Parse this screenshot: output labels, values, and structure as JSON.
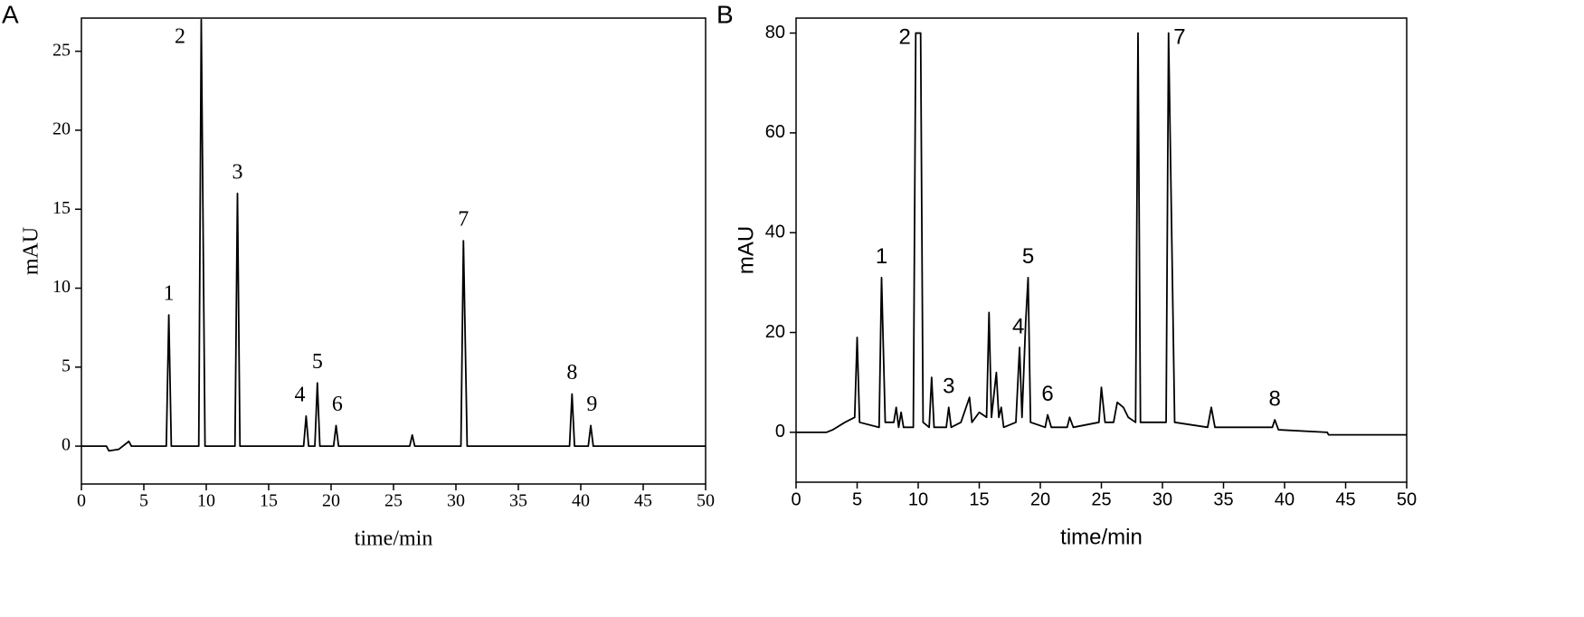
{
  "chart_data": [
    {
      "type": "line",
      "title": "A",
      "xlabel": "time/min",
      "ylabel": "mAU",
      "font": "serif",
      "xlim": [
        0,
        50
      ],
      "ylim": [
        -2.4,
        27.1
      ],
      "xticks": [
        0,
        5,
        10,
        15,
        20,
        25,
        30,
        35,
        40,
        45,
        50
      ],
      "yticks": [
        0,
        5,
        10,
        15,
        20,
        25
      ],
      "color": "#000000",
      "x": [
        0,
        2,
        2.2,
        3,
        3.8,
        4,
        6.8,
        7,
        7.2,
        9.4,
        9.6,
        9.9,
        12.3,
        12.5,
        12.7,
        17.8,
        18,
        18.2,
        18.7,
        18.9,
        19.1,
        20.2,
        20.4,
        20.6,
        26.3,
        26.5,
        26.7,
        30.4,
        30.6,
        30.9,
        39.1,
        39.3,
        39.5,
        40.6,
        40.8,
        41,
        50
      ],
      "y": [
        0,
        0,
        -0.3,
        -0.2,
        0.3,
        0,
        0,
        8.3,
        0,
        0,
        27,
        0,
        0,
        16,
        0,
        0,
        1.9,
        0,
        0,
        4,
        0,
        0,
        1.3,
        0,
        0,
        0.7,
        0,
        0,
        13,
        0,
        0,
        3.3,
        0,
        0,
        1.3,
        0,
        0
      ],
      "annotations": [
        {
          "text": "1",
          "x": 7.0,
          "y": 8.3
        },
        {
          "text": "2",
          "x": 7.9,
          "y": 25.2
        },
        {
          "text": "3",
          "x": 12.5,
          "y": 16
        },
        {
          "text": "4",
          "x": 17.5,
          "y": 1.9
        },
        {
          "text": "5",
          "x": 18.9,
          "y": 4
        },
        {
          "text": "6",
          "x": 20.5,
          "y": 1.3
        },
        {
          "text": "7",
          "x": 30.6,
          "y": 13
        },
        {
          "text": "8",
          "x": 39.3,
          "y": 3.3
        },
        {
          "text": "9",
          "x": 40.9,
          "y": 1.3
        }
      ]
    },
    {
      "type": "line",
      "title": "B",
      "xlabel": "time/min",
      "ylabel": "mAU",
      "font": "sans",
      "xlim": [
        0,
        50
      ],
      "ylim": [
        -10,
        83
      ],
      "xticks": [
        0,
        5,
        10,
        15,
        20,
        25,
        30,
        35,
        40,
        45,
        50
      ],
      "yticks": [
        0,
        20,
        40,
        60,
        80
      ],
      "color": "#000000",
      "x": [
        0,
        2.5,
        3,
        4,
        4.8,
        5,
        5.2,
        6.8,
        7,
        7.3,
        8,
        8.2,
        8.4,
        8.6,
        8.8,
        9.6,
        9.8,
        10.2,
        10.4,
        10.9,
        11.1,
        11.3,
        12.3,
        12.5,
        12.7,
        13.5,
        14.2,
        14.4,
        15,
        15.6,
        15.8,
        16,
        16.4,
        16.6,
        16.8,
        17,
        18,
        18.3,
        18.5,
        18.8,
        19,
        19.2,
        20.4,
        20.6,
        20.9,
        22.2,
        22.4,
        22.7,
        24.8,
        25,
        25.3,
        26,
        26.3,
        26.8,
        27.2,
        27.8,
        28,
        28.2,
        30.3,
        30.5,
        31,
        33.7,
        34,
        34.3,
        35.8,
        39,
        39.2,
        39.5,
        43.5,
        43.6,
        50
      ],
      "y": [
        0,
        0,
        0.5,
        2,
        3,
        19,
        2,
        1,
        31,
        2,
        2,
        5,
        1,
        4,
        1,
        1,
        80,
        80,
        2,
        1,
        11,
        1,
        1,
        5,
        1,
        2,
        7,
        2,
        4,
        3,
        24,
        3,
        12,
        3,
        5,
        1,
        2,
        17,
        3,
        22,
        31,
        2,
        1,
        3.5,
        1,
        1,
        3,
        1,
        2,
        9,
        2,
        2,
        6,
        5,
        3,
        2,
        80,
        2,
        2,
        80,
        2,
        1,
        5,
        1,
        1,
        1,
        2.5,
        0.5,
        0,
        -0.5,
        -0.5
      ],
      "annotations": [
        {
          "text": "1",
          "x": 7.0,
          "y": 31
        },
        {
          "text": "2",
          "x": 8.9,
          "y": 76
        },
        {
          "text": "3",
          "x": 12.5,
          "y": 5
        },
        {
          "text": "4",
          "x": 18.2,
          "y": 17
        },
        {
          "text": "5",
          "x": 19.0,
          "y": 31
        },
        {
          "text": "6",
          "x": 20.6,
          "y": 3.5
        },
        {
          "text": "7",
          "x": 31.4,
          "y": 76
        },
        {
          "text": "8",
          "x": 39.2,
          "y": 2.5
        }
      ]
    }
  ]
}
